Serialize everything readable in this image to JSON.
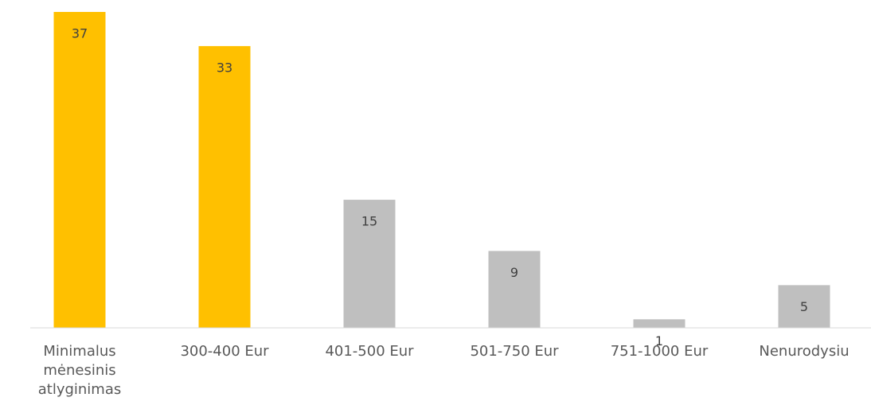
{
  "chart_data": {
    "type": "bar",
    "categories": [
      "Minimalus mėnesinis atlyginimas",
      "300-400 Eur",
      "401-500 Eur",
      "501-750 Eur",
      "751-1000 Eur",
      "Nenurodysiu"
    ],
    "values": [
      37,
      33,
      15,
      9,
      1,
      5
    ],
    "colors": [
      "#FFC000",
      "#FFC000",
      "#BFBFBF",
      "#BFBFBF",
      "#BFBFBF",
      "#BFBFBF"
    ]
  }
}
